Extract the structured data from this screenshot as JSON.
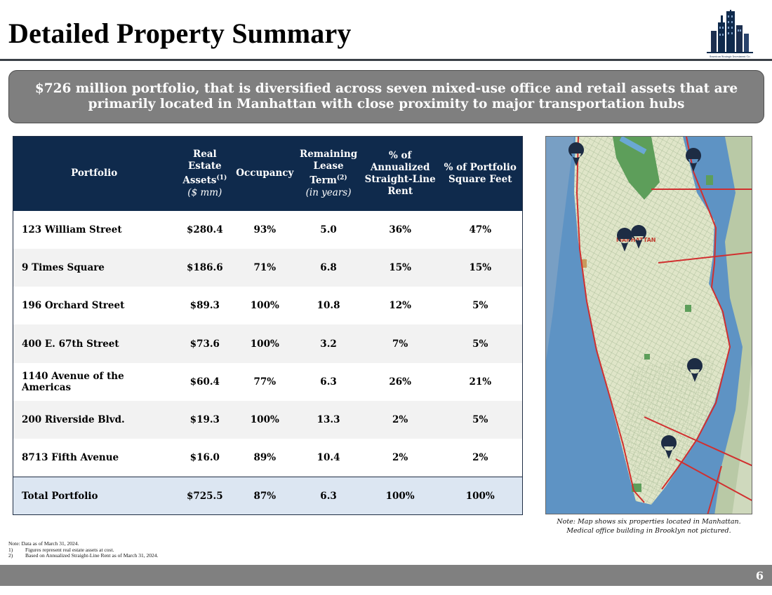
{
  "header": {
    "title": "Detailed Property Summary",
    "logo_icon": "city-skyline-logo-icon",
    "logo_caption": "American Strategic Investment Co."
  },
  "banner": {
    "text": "$726 million portfolio, that is diversified across seven mixed-use office and retail assets that are primarily located in Manhattan with close proximity to major transportation hubs"
  },
  "table": {
    "headers": {
      "portfolio": "Portfolio",
      "real_estate": "Real Estate Assets",
      "real_estate_sup": "(1)",
      "real_estate_unit": "($ mm)",
      "occupancy": "Occupancy",
      "lease_term": "Remaining Lease Term",
      "lease_term_sup": "(2)",
      "lease_term_unit": "(in years)",
      "annualized": "% of Annualized Straight-Line Rent",
      "square_feet": "% of Portfolio Square Feet"
    },
    "rows": [
      {
        "name": "123 William Street",
        "assets": "$280.4",
        "occupancy": "93%",
        "lease": "5.0",
        "rent": "36%",
        "sqft": "47%"
      },
      {
        "name": "9 Times Square",
        "assets": "$186.6",
        "occupancy": "71%",
        "lease": "6.8",
        "rent": "15%",
        "sqft": "15%"
      },
      {
        "name": "196 Orchard Street",
        "assets": "$89.3",
        "occupancy": "100%",
        "lease": "10.8",
        "rent": "12%",
        "sqft": "5%"
      },
      {
        "name": "400 E. 67th Street",
        "assets": "$73.6",
        "occupancy": "100%",
        "lease": "3.2",
        "rent": "7%",
        "sqft": "5%"
      },
      {
        "name": "1140 Avenue of the Americas",
        "assets": "$60.4",
        "occupancy": "77%",
        "lease": "6.3",
        "rent": "26%",
        "sqft": "21%"
      },
      {
        "name": "200 Riverside Blvd.",
        "assets": "$19.3",
        "occupancy": "100%",
        "lease": "13.3",
        "rent": "2%",
        "sqft": "5%"
      },
      {
        "name": "8713 Fifth Avenue",
        "assets": "$16.0",
        "occupancy": "89%",
        "lease": "10.4",
        "rent": "2%",
        "sqft": "2%"
      }
    ],
    "total": {
      "name": "Total Portfolio",
      "assets": "$725.5",
      "occupancy": "87%",
      "lease": "6.3",
      "rent": "100%",
      "sqft": "100%"
    }
  },
  "map": {
    "icon": "manhattan-map-icon",
    "label": "MANHATTAN",
    "note_line1": "Note: Map shows six properties located in Manhattan.",
    "note_line2": "Medical office building in Brooklyn not pictured."
  },
  "footnotes": {
    "note": "Note: Data as of March 31, 2024.",
    "items": [
      {
        "num": "1)",
        "text": "Figures represent real estate assets at cost."
      },
      {
        "num": "2)",
        "text": "Based on Annualized Straight-Line Rent as of March 31, 2024."
      }
    ]
  },
  "page": {
    "number": "6"
  },
  "colors": {
    "header_navy": "#0f2a4c",
    "banner_gray": "#7f7f7f",
    "total_row": "#dce6f2",
    "bottom_bar": "#808080"
  }
}
